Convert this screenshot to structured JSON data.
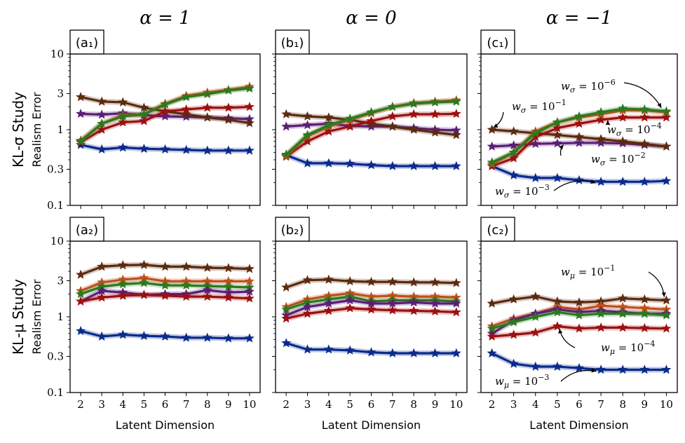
{
  "chart_data": {
    "type": "line",
    "column_titles": [
      "α = 1",
      "α = 0",
      "α = −1"
    ],
    "row_titles": [
      "KL-σ Study",
      "KL-μ Study"
    ],
    "ylabel": "Realism Error",
    "xlabel": "Latent Dimension",
    "x": [
      2,
      3,
      4,
      5,
      6,
      7,
      8,
      9,
      10
    ],
    "y_scale": "log",
    "ylim": [
      0.1,
      10
    ],
    "y_ticks": [
      "0.1",
      "0.3",
      "1",
      "3",
      "10"
    ],
    "y_tick_values": [
      0.1,
      0.3,
      1,
      3,
      10
    ],
    "colors": {
      "w1e-1": "#5c2a0e",
      "w1e-2": "#5b1e78",
      "w1e-3": "#0a2a8c",
      "w1e-4": "#9c1010",
      "w1e-5": "#c0501a",
      "w1e-6": "#2a7a1e"
    },
    "panels": [
      {
        "label": "(a₁)",
        "series": [
          {
            "key": "w1e-3",
            "values": [
              0.63,
              0.55,
              0.58,
              0.56,
              0.55,
              0.54,
              0.53,
              0.53,
              0.53
            ]
          },
          {
            "key": "w1e-2",
            "values": [
              1.62,
              1.58,
              1.65,
              1.55,
              1.5,
              1.48,
              1.45,
              1.42,
              1.38
            ]
          },
          {
            "key": "w1e-1",
            "values": [
              2.7,
              2.35,
              2.3,
              1.95,
              1.75,
              1.6,
              1.45,
              1.35,
              1.22
            ]
          },
          {
            "key": "w1e-4",
            "values": [
              0.68,
              1.0,
              1.25,
              1.3,
              1.75,
              1.85,
              1.95,
              1.95,
              2.0
            ]
          },
          {
            "key": "w1e-5",
            "values": [
              0.72,
              1.2,
              1.55,
              1.6,
              2.2,
              2.8,
              3.1,
              3.35,
              3.7
            ]
          },
          {
            "key": "w1e-6",
            "values": [
              0.7,
              1.2,
              1.5,
              1.6,
              2.15,
              2.7,
              2.95,
              3.3,
              3.5
            ]
          }
        ]
      },
      {
        "label": "(b₁)",
        "series": [
          {
            "key": "w1e-3",
            "values": [
              0.46,
              0.36,
              0.36,
              0.355,
              0.34,
              0.33,
              0.33,
              0.33,
              0.33
            ]
          },
          {
            "key": "w1e-2",
            "values": [
              1.1,
              1.15,
              1.2,
              1.12,
              1.1,
              1.1,
              1.05,
              1.0,
              0.98
            ]
          },
          {
            "key": "w1e-1",
            "values": [
              1.6,
              1.5,
              1.45,
              1.35,
              1.2,
              1.1,
              1.0,
              0.92,
              0.85
            ]
          },
          {
            "key": "w1e-4",
            "values": [
              0.44,
              0.7,
              0.95,
              1.1,
              1.3,
              1.5,
              1.6,
              1.6,
              1.62
            ]
          },
          {
            "key": "w1e-5",
            "values": [
              0.45,
              0.82,
              1.1,
              1.35,
              1.65,
              2.0,
              2.25,
              2.35,
              2.45
            ]
          },
          {
            "key": "w1e-6",
            "values": [
              0.47,
              0.85,
              1.15,
              1.4,
              1.7,
              2.0,
              2.2,
              2.3,
              2.35
            ]
          }
        ]
      },
      {
        "label": "(c₁)",
        "series": [
          {
            "key": "w1e-3",
            "values": [
              0.33,
              0.25,
              0.23,
              0.23,
              0.215,
              0.205,
              0.205,
              0.205,
              0.21
            ]
          },
          {
            "key": "w1e-2",
            "values": [
              0.6,
              0.62,
              0.65,
              0.66,
              0.67,
              0.67,
              0.66,
              0.63,
              0.6
            ]
          },
          {
            "key": "w1e-1",
            "values": [
              1.0,
              0.95,
              0.9,
              0.85,
              0.8,
              0.75,
              0.7,
              0.65,
              0.6
            ]
          },
          {
            "key": "w1e-4",
            "values": [
              0.33,
              0.42,
              0.8,
              1.05,
              1.2,
              1.35,
              1.45,
              1.45,
              1.45
            ]
          },
          {
            "key": "w1e-5",
            "values": [
              0.35,
              0.5,
              0.95,
              1.25,
              1.45,
              1.6,
              1.8,
              1.8,
              1.7
            ]
          },
          {
            "key": "w1e-6",
            "values": [
              0.37,
              0.5,
              0.9,
              1.25,
              1.5,
              1.7,
              1.9,
              1.85,
              1.75
            ]
          }
        ]
      },
      {
        "label": "(a₂)",
        "series": [
          {
            "key": "w1e-3",
            "values": [
              0.65,
              0.55,
              0.58,
              0.56,
              0.55,
              0.53,
              0.53,
              0.52,
              0.52
            ]
          },
          {
            "key": "w1e-1",
            "values": [
              3.6,
              4.6,
              4.8,
              4.85,
              4.6,
              4.6,
              4.45,
              4.4,
              4.3
            ]
          },
          {
            "key": "w1e-5",
            "values": [
              2.2,
              2.85,
              3.1,
              3.25,
              2.95,
              2.95,
              2.95,
              2.95,
              2.95
            ]
          },
          {
            "key": "w1e-6",
            "values": [
              2.0,
              2.5,
              2.7,
              2.8,
              2.6,
              2.6,
              2.55,
              2.5,
              2.45
            ]
          },
          {
            "key": "w1e-2",
            "values": [
              1.6,
              2.2,
              2.1,
              1.95,
              2.0,
              2.0,
              2.25,
              2.1,
              2.15
            ]
          },
          {
            "key": "w1e-4",
            "values": [
              1.6,
              1.8,
              1.9,
              1.95,
              1.9,
              1.85,
              1.85,
              1.8,
              1.75
            ]
          }
        ]
      },
      {
        "label": "(b₂)",
        "series": [
          {
            "key": "w1e-3",
            "values": [
              0.45,
              0.37,
              0.37,
              0.36,
              0.34,
              0.33,
              0.33,
              0.33,
              0.33
            ]
          },
          {
            "key": "w1e-1",
            "values": [
              2.45,
              3.05,
              3.1,
              2.95,
              2.9,
              2.9,
              2.85,
              2.85,
              2.8
            ]
          },
          {
            "key": "w1e-5",
            "values": [
              1.35,
              1.7,
              1.9,
              2.05,
              1.85,
              1.9,
              1.85,
              1.85,
              1.8
            ]
          },
          {
            "key": "w1e-6",
            "values": [
              1.25,
              1.55,
              1.7,
              1.85,
              1.6,
              1.65,
              1.65,
              1.65,
              1.6
            ]
          },
          {
            "key": "w1e-2",
            "values": [
              1.05,
              1.35,
              1.5,
              1.65,
              1.5,
              1.5,
              1.55,
              1.5,
              1.5
            ]
          },
          {
            "key": "w1e-4",
            "values": [
              0.95,
              1.1,
              1.2,
              1.3,
              1.25,
              1.22,
              1.2,
              1.18,
              1.15
            ]
          }
        ]
      },
      {
        "label": "(c₂)",
        "series": [
          {
            "key": "w1e-3",
            "values": [
              0.33,
              0.24,
              0.22,
              0.22,
              0.21,
              0.2,
              0.2,
              0.2,
              0.2
            ]
          },
          {
            "key": "w1e-1",
            "values": [
              1.5,
              1.7,
              1.85,
              1.6,
              1.55,
              1.6,
              1.75,
              1.7,
              1.65
            ]
          },
          {
            "key": "w1e-5",
            "values": [
              0.75,
              0.95,
              1.1,
              1.35,
              1.25,
              1.4,
              1.35,
              1.3,
              1.25
            ]
          },
          {
            "key": "w1e-2",
            "values": [
              0.6,
              0.9,
              1.1,
              1.25,
              1.15,
              1.2,
              1.15,
              1.1,
              1.1
            ]
          },
          {
            "key": "w1e-6",
            "values": [
              0.7,
              0.85,
              1.0,
              1.15,
              1.05,
              1.1,
              1.1,
              1.1,
              1.05
            ]
          },
          {
            "key": "w1e-4",
            "values": [
              0.55,
              0.58,
              0.62,
              0.75,
              0.7,
              0.72,
              0.72,
              0.71,
              0.7
            ]
          }
        ]
      }
    ],
    "annotations": [
      {
        "panel": 2,
        "text": "wσ = 10⁻⁶",
        "base": "w",
        "sub": "σ",
        "mid": " = 10",
        "sup": "−6",
        "point": [
          10,
          1.75
        ]
      },
      {
        "panel": 2,
        "text": "wσ = 10⁻¹",
        "base": "w",
        "sub": "σ",
        "mid": " = 10",
        "sup": "−1",
        "point": [
          2,
          1.0
        ]
      },
      {
        "panel": 2,
        "text": "wσ = 10⁻⁴",
        "base": "w",
        "sub": "σ",
        "mid": " = 10",
        "sup": "−4",
        "point": [
          7.3,
          1.35
        ]
      },
      {
        "panel": 2,
        "text": "wσ = 10⁻²",
        "base": "w",
        "sub": "σ",
        "mid": " = 10",
        "sup": "−2",
        "point": [
          5.3,
          0.66
        ]
      },
      {
        "panel": 2,
        "text": "wσ = 10⁻³",
        "base": "w",
        "sub": "σ",
        "mid": " = 10",
        "sup": "−3",
        "point": [
          7,
          0.205
        ]
      },
      {
        "panel": 5,
        "text": "wμ = 10⁻¹",
        "base": "w",
        "sub": "μ",
        "mid": " = 10",
        "sup": "−1",
        "point": [
          10,
          1.65
        ]
      },
      {
        "panel": 5,
        "text": "wμ = 10⁻⁴",
        "base": "w",
        "sub": "μ",
        "mid": " = 10",
        "sup": "−4",
        "point": [
          5,
          0.75
        ]
      },
      {
        "panel": 5,
        "text": "wμ = 10⁻³",
        "base": "w",
        "sub": "μ",
        "mid": " = 10",
        "sup": "−3",
        "point": [
          7,
          0.2
        ]
      }
    ]
  }
}
